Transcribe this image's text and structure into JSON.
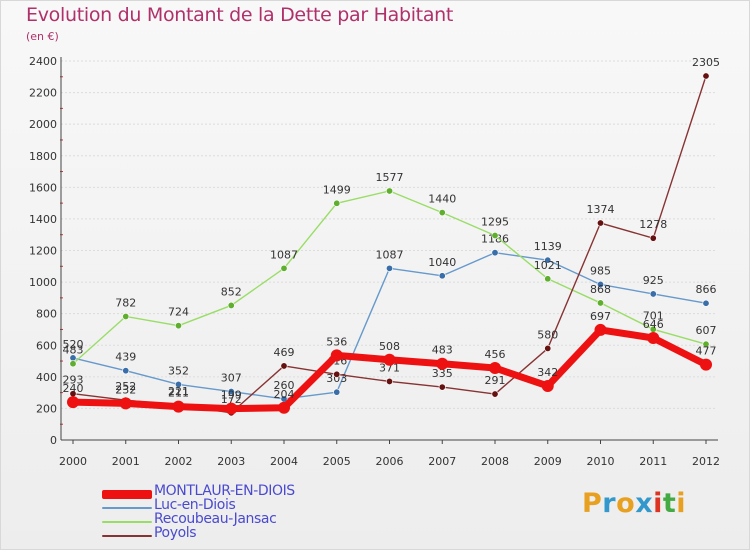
{
  "header": {
    "title": "Evolution du Montant de la Dette par Habitant",
    "unit": "(en €)"
  },
  "logo": {
    "text": "Proxiti"
  },
  "chart_data": {
    "type": "line",
    "title": "Evolution du Montant de la Dette par Habitant",
    "subtitle": "(en €)",
    "x": [
      "2000",
      "2001",
      "2002",
      "2003",
      "2004",
      "2005",
      "2006",
      "2007",
      "2008",
      "2009",
      "2010",
      "2011",
      "2012"
    ],
    "ylim": [
      0,
      2400
    ],
    "yticks": [
      0,
      200,
      400,
      600,
      800,
      1000,
      1200,
      1400,
      1600,
      1800,
      2000,
      2200,
      2400
    ],
    "grid": true,
    "legend_position": "bottom-left",
    "series": [
      {
        "name": "MONTLAUR-EN-DIOIS",
        "color": "#ee1111",
        "values": [
          240,
          232,
          211,
          199,
          204,
          536,
          508,
          483,
          456,
          342,
          697,
          646,
          477
        ]
      },
      {
        "name": "Luc-en-Diois",
        "color": "#6699cc",
        "values": [
          520,
          439,
          352,
          307,
          260,
          303,
          1087,
          1040,
          1186,
          1139,
          985,
          925,
          866
        ]
      },
      {
        "name": "Recoubeau-Jansac",
        "color": "#99dd66",
        "values": [
          483,
          782,
          724,
          852,
          1087,
          1499,
          1577,
          1440,
          1295,
          1021,
          868,
          701,
          607
        ]
      },
      {
        "name": "Poyols",
        "color": "#883333",
        "values": [
          293,
          252,
          221,
          172,
          469,
          416,
          371,
          335,
          291,
          580,
          1374,
          1278,
          2305
        ]
      }
    ]
  }
}
